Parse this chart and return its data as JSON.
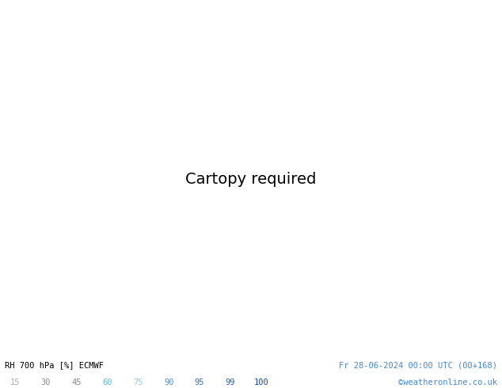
{
  "title_left": "RH 700 hPa [%] ECMWF",
  "title_right": "Fr 28-06-2024 00:00 UTC (00+168)",
  "credit": "©weatheronline.co.uk",
  "colorbar_levels": [
    15,
    30,
    45,
    60,
    75,
    90,
    95,
    99,
    100
  ],
  "label_colors": [
    "#b0b0b0",
    "#909090",
    "#808888",
    "#60b8e0",
    "#90c8f0",
    "#5090d0",
    "#3870b8",
    "#2060b0",
    "#1848a0"
  ],
  "fill_levels": [
    0,
    15,
    30,
    45,
    60,
    75,
    90,
    95,
    99,
    101
  ],
  "fill_colors": [
    "#f4f4f4",
    "#dcdcdc",
    "#c8cec8",
    "#b8d8b0",
    "#a8d8f8",
    "#6aacdc",
    "#4080c8",
    "#2860b0",
    "#0a3898"
  ],
  "contour_levels": [
    30,
    60,
    70,
    80,
    90
  ],
  "contour_color": "#505050",
  "border_color": "#00bb00",
  "ocean_color": "#d0dce8",
  "land_color": "#e8e8e8",
  "bg_color": "#ffffff",
  "figsize": [
    6.34,
    4.9
  ],
  "dpi": 100,
  "extent": [
    -30,
    75,
    -40,
    45
  ],
  "label_color_left": "#000000",
  "label_color_right": "#4488cc",
  "credit_color": "#4488cc"
}
